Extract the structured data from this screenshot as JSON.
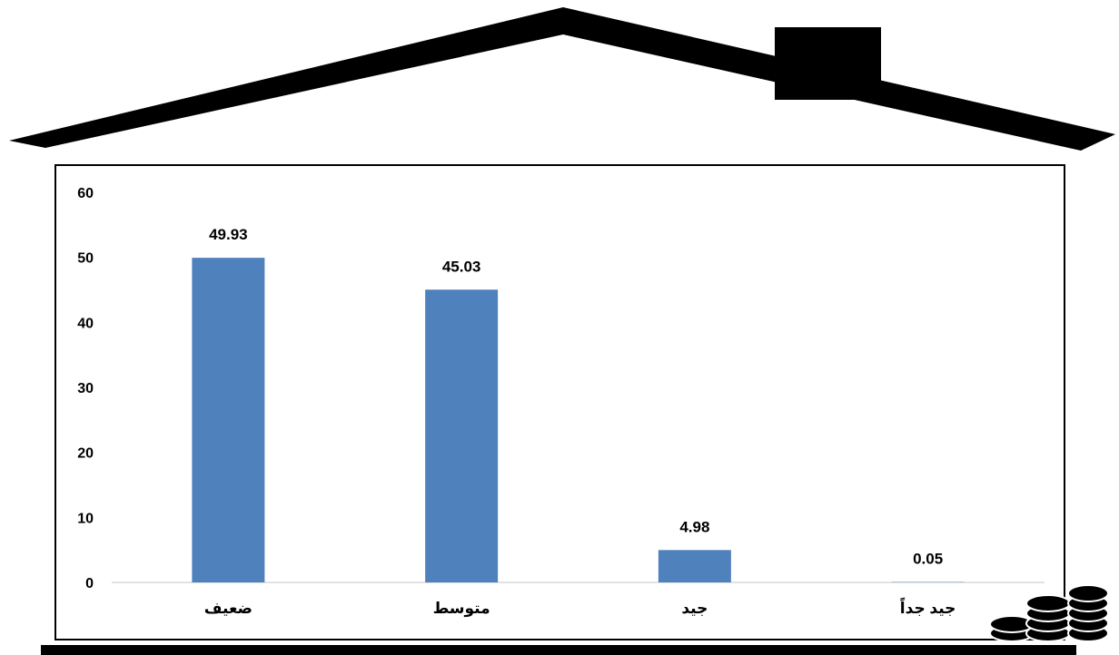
{
  "chart_data": {
    "type": "bar",
    "categories": [
      "ضعيف",
      "متوسط",
      "جيد",
      "جيد جداً"
    ],
    "values": [
      49.93,
      45.03,
      4.98,
      0.05
    ],
    "data_labels": [
      "49.93",
      "45.03",
      "4.98",
      "0.05"
    ],
    "y_ticks": [
      "0",
      "10",
      "20",
      "30",
      "40",
      "50",
      "60"
    ],
    "ylim": [
      0,
      60
    ],
    "title": "",
    "xlabel": "",
    "ylabel": "",
    "grid": false,
    "legend": "none",
    "bar_color": "#4f81bd"
  },
  "colors": {
    "roof": "#000000",
    "axis_line": "#d9d9d9"
  },
  "icons": {
    "roof": "house-roof-icon",
    "chimney": "chimney-icon",
    "coins": "coin-stacks-icon"
  }
}
